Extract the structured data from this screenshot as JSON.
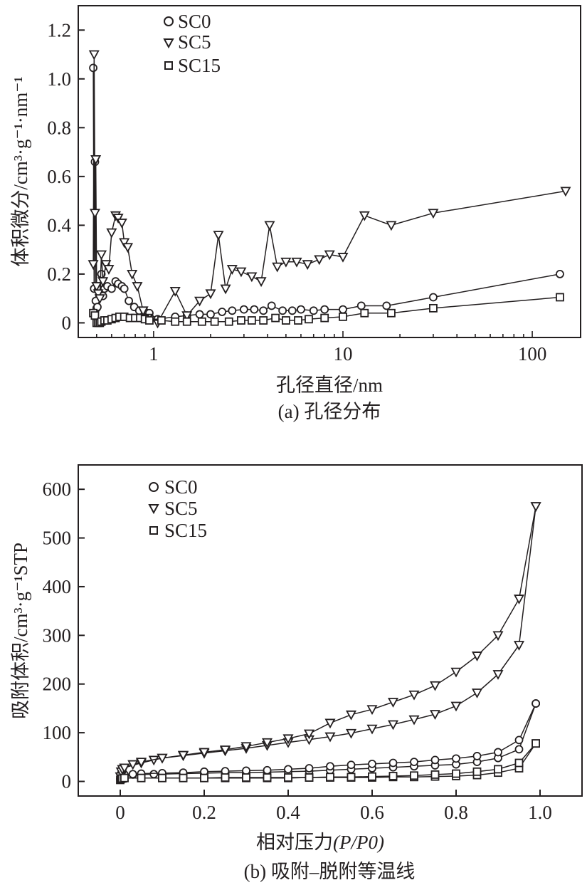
{
  "colors": {
    "ink": "#231f20",
    "background": "#ffffff"
  },
  "chart_data": [
    {
      "type": "line",
      "x_scale": "log",
      "xlabel": "孔径直径/nm",
      "ylabel": "体积微分/cm³·g⁻¹·nm⁻¹",
      "caption": "(a) 孔径分布",
      "xlim": [
        0.4,
        180
      ],
      "ylim": [
        -0.06,
        1.3
      ],
      "xticks": [
        1,
        10,
        100
      ],
      "xtick_labels": [
        "1",
        "10",
        "100"
      ],
      "yticks": [
        0,
        0.2,
        0.4,
        0.6,
        0.8,
        1.0,
        1.2
      ],
      "ytick_labels": [
        "0",
        "0.2",
        "0.4",
        "0.6",
        "0.8",
        "1.0",
        "1.2"
      ],
      "legend": [
        "SC0",
        "SC5",
        "SC15"
      ],
      "legend_position": "top-left",
      "series": [
        {
          "name": "SC0",
          "marker": "circle",
          "x": [
            0.48,
            0.485,
            0.49,
            0.495,
            0.5,
            0.505,
            0.51,
            0.52,
            0.53,
            0.54,
            0.55,
            0.57,
            0.6,
            0.63,
            0.65,
            0.68,
            0.7,
            0.74,
            0.79,
            0.84,
            0.9,
            0.95,
            1.05,
            1.3,
            1.5,
            1.75,
            2.0,
            2.3,
            2.6,
            3.0,
            3.4,
            3.8,
            4.2,
            4.8,
            5.4,
            6.0,
            7.0,
            8.0,
            10.0,
            12.5,
            17.0,
            30.0,
            140.0
          ],
          "y": [
            1.045,
            0.14,
            0.66,
            0.09,
            0.06,
            0.065,
            0.14,
            0.12,
            0.2,
            0.11,
            0.14,
            0.15,
            0.14,
            0.17,
            0.16,
            0.15,
            0.14,
            0.09,
            0.065,
            0.05,
            0.045,
            0.04,
            0.015,
            0.025,
            0.03,
            0.035,
            0.035,
            0.045,
            0.05,
            0.055,
            0.055,
            0.05,
            0.07,
            0.05,
            0.05,
            0.055,
            0.05,
            0.055,
            0.055,
            0.07,
            0.07,
            0.105,
            0.2
          ]
        },
        {
          "name": "SC5",
          "marker": "triangle-down",
          "x": [
            0.48,
            0.485,
            0.49,
            0.495,
            0.5,
            0.51,
            0.52,
            0.53,
            0.54,
            0.56,
            0.58,
            0.6,
            0.63,
            0.65,
            0.68,
            0.7,
            0.73,
            0.77,
            0.82,
            0.88,
            0.93,
            1.05,
            1.3,
            1.5,
            1.75,
            2.0,
            2.2,
            2.4,
            2.6,
            2.9,
            3.3,
            3.7,
            4.1,
            4.5,
            5.0,
            5.7,
            6.5,
            7.5,
            8.5,
            10.0,
            13.0,
            18.0,
            30.0,
            150.0
          ],
          "y": [
            0.24,
            1.1,
            0.45,
            0.67,
            0.15,
            0.12,
            0.1,
            0.28,
            0.17,
            0.24,
            0.22,
            0.37,
            0.44,
            0.43,
            0.41,
            0.33,
            0.31,
            0.2,
            0.15,
            0.05,
            0.02,
            0.0,
            0.13,
            0.03,
            0.09,
            0.12,
            0.36,
            0.14,
            0.22,
            0.21,
            0.19,
            0.17,
            0.4,
            0.23,
            0.25,
            0.25,
            0.24,
            0.26,
            0.28,
            0.27,
            0.44,
            0.4,
            0.45,
            0.54
          ]
        },
        {
          "name": "SC15",
          "marker": "square",
          "x": [
            0.48,
            0.49,
            0.5,
            0.51,
            0.52,
            0.53,
            0.55,
            0.57,
            0.6,
            0.63,
            0.66,
            0.7,
            0.75,
            0.8,
            0.85,
            0.9,
            0.95,
            1.1,
            1.3,
            1.5,
            1.8,
            2.1,
            2.5,
            2.9,
            3.3,
            3.8,
            4.4,
            5.0,
            5.8,
            6.6,
            8.0,
            10.0,
            13.0,
            18.0,
            30.0,
            140.0
          ],
          "y": [
            0.04,
            0.03,
            0.0,
            0.0,
            0.0,
            0.005,
            0.01,
            0.01,
            0.015,
            0.02,
            0.025,
            0.025,
            0.02,
            0.02,
            0.02,
            0.015,
            0.01,
            0.01,
            0.005,
            0.005,
            0.005,
            0.005,
            0.005,
            0.01,
            0.01,
            0.01,
            0.02,
            0.01,
            0.01,
            0.015,
            0.02,
            0.025,
            0.04,
            0.04,
            0.06,
            0.105
          ]
        }
      ]
    },
    {
      "type": "line",
      "x_scale": "linear",
      "xlabel": "相对压力",
      "xlabel_formula": "(P/P0)",
      "ylabel": "吸附体积/cm³·g⁻¹STP",
      "caption": "(b) 吸附–脱附等温线",
      "xlim": [
        -0.1,
        1.1
      ],
      "ylim": [
        -30,
        650
      ],
      "xticks": [
        0,
        0.2,
        0.4,
        0.6,
        0.8,
        1.0
      ],
      "xtick_labels": [
        "0",
        "0.2",
        "0.4",
        "0.6",
        "0.8",
        "1.0"
      ],
      "yticks": [
        0,
        100,
        200,
        300,
        400,
        500,
        600
      ],
      "ytick_labels": [
        "0",
        "100",
        "200",
        "300",
        "400",
        "500",
        "600"
      ],
      "legend": [
        "SC0",
        "SC5",
        "SC15"
      ],
      "legend_position": "top-left",
      "series": [
        {
          "name": "SC0 adsorption",
          "legend": "SC0",
          "marker": "circle",
          "x": [
            0.0,
            0.001,
            0.002,
            0.003,
            0.005,
            0.01,
            0.03,
            0.05,
            0.08,
            0.1,
            0.15,
            0.2,
            0.25,
            0.3,
            0.35,
            0.4,
            0.45,
            0.5,
            0.55,
            0.6,
            0.65,
            0.7,
            0.75,
            0.8,
            0.85,
            0.9,
            0.95,
            0.99
          ],
          "y": [
            5,
            8,
            10,
            12,
            13,
            13,
            14,
            14,
            15,
            15,
            16,
            17,
            18,
            18,
            19,
            20,
            21,
            23,
            25,
            27,
            29,
            31,
            33,
            35,
            40,
            48,
            66,
            160
          ]
        },
        {
          "name": "SC0 desorption",
          "legend": "SC0",
          "marker": "circle",
          "x": [
            0.99,
            0.95,
            0.9,
            0.85,
            0.8,
            0.75,
            0.7,
            0.65,
            0.6,
            0.55,
            0.5,
            0.45,
            0.4,
            0.35,
            0.3,
            0.25,
            0.2,
            0.15,
            0.1,
            0.05,
            0.03,
            0.01,
            0.005,
            0.003,
            0.001
          ],
          "y": [
            160,
            85,
            60,
            52,
            47,
            44,
            40,
            38,
            36,
            34,
            31,
            27,
            25,
            23,
            22,
            21,
            20,
            18,
            17,
            16,
            15,
            14,
            22,
            18,
            10
          ]
        },
        {
          "name": "SC5 adsorption",
          "legend": "SC5",
          "marker": "triangle-down",
          "x": [
            0.0,
            0.002,
            0.005,
            0.01,
            0.05,
            0.08,
            0.1,
            0.15,
            0.2,
            0.25,
            0.3,
            0.35,
            0.4,
            0.45,
            0.5,
            0.55,
            0.6,
            0.65,
            0.7,
            0.75,
            0.8,
            0.85,
            0.9,
            0.95,
            0.99
          ],
          "y": [
            10,
            20,
            25,
            28,
            38,
            44,
            48,
            53,
            58,
            63,
            68,
            74,
            80,
            86,
            92,
            99,
            108,
            117,
            127,
            138,
            155,
            182,
            220,
            280,
            565
          ]
        },
        {
          "name": "SC5 desorption",
          "legend": "SC5",
          "marker": "triangle-down",
          "x": [
            0.99,
            0.95,
            0.9,
            0.85,
            0.8,
            0.75,
            0.7,
            0.65,
            0.6,
            0.55,
            0.5,
            0.45,
            0.4,
            0.35,
            0.3,
            0.25,
            0.2,
            0.15,
            0.1,
            0.05,
            0.03,
            0.01
          ],
          "y": [
            565,
            375,
            300,
            258,
            225,
            197,
            178,
            163,
            148,
            137,
            120,
            98,
            88,
            80,
            72,
            65,
            60,
            54,
            48,
            40,
            35,
            28
          ]
        },
        {
          "name": "SC15 adsorption",
          "legend": "SC15",
          "marker": "square",
          "x": [
            0.0,
            0.001,
            0.002,
            0.005,
            0.01,
            0.05,
            0.1,
            0.15,
            0.2,
            0.25,
            0.3,
            0.35,
            0.4,
            0.45,
            0.5,
            0.55,
            0.6,
            0.65,
            0.7,
            0.75,
            0.8,
            0.85,
            0.9,
            0.95,
            0.99
          ],
          "y": [
            3,
            5,
            6,
            6,
            7,
            7,
            7,
            7,
            7,
            7,
            7,
            7,
            7,
            8,
            8,
            8,
            8,
            9,
            9,
            10,
            11,
            13,
            18,
            27,
            78
          ]
        },
        {
          "name": "SC15 desorption",
          "legend": "SC15",
          "marker": "square",
          "x": [
            0.99,
            0.95,
            0.9,
            0.85,
            0.8,
            0.75,
            0.7,
            0.65,
            0.6,
            0.55,
            0.5,
            0.45,
            0.4,
            0.35,
            0.3,
            0.25,
            0.2,
            0.15,
            0.1,
            0.05,
            0.01
          ],
          "y": [
            78,
            38,
            25,
            20,
            16,
            14,
            12,
            11,
            10,
            9,
            9,
            8,
            8,
            8,
            8,
            8,
            7,
            7,
            7,
            7,
            7
          ]
        }
      ]
    }
  ]
}
